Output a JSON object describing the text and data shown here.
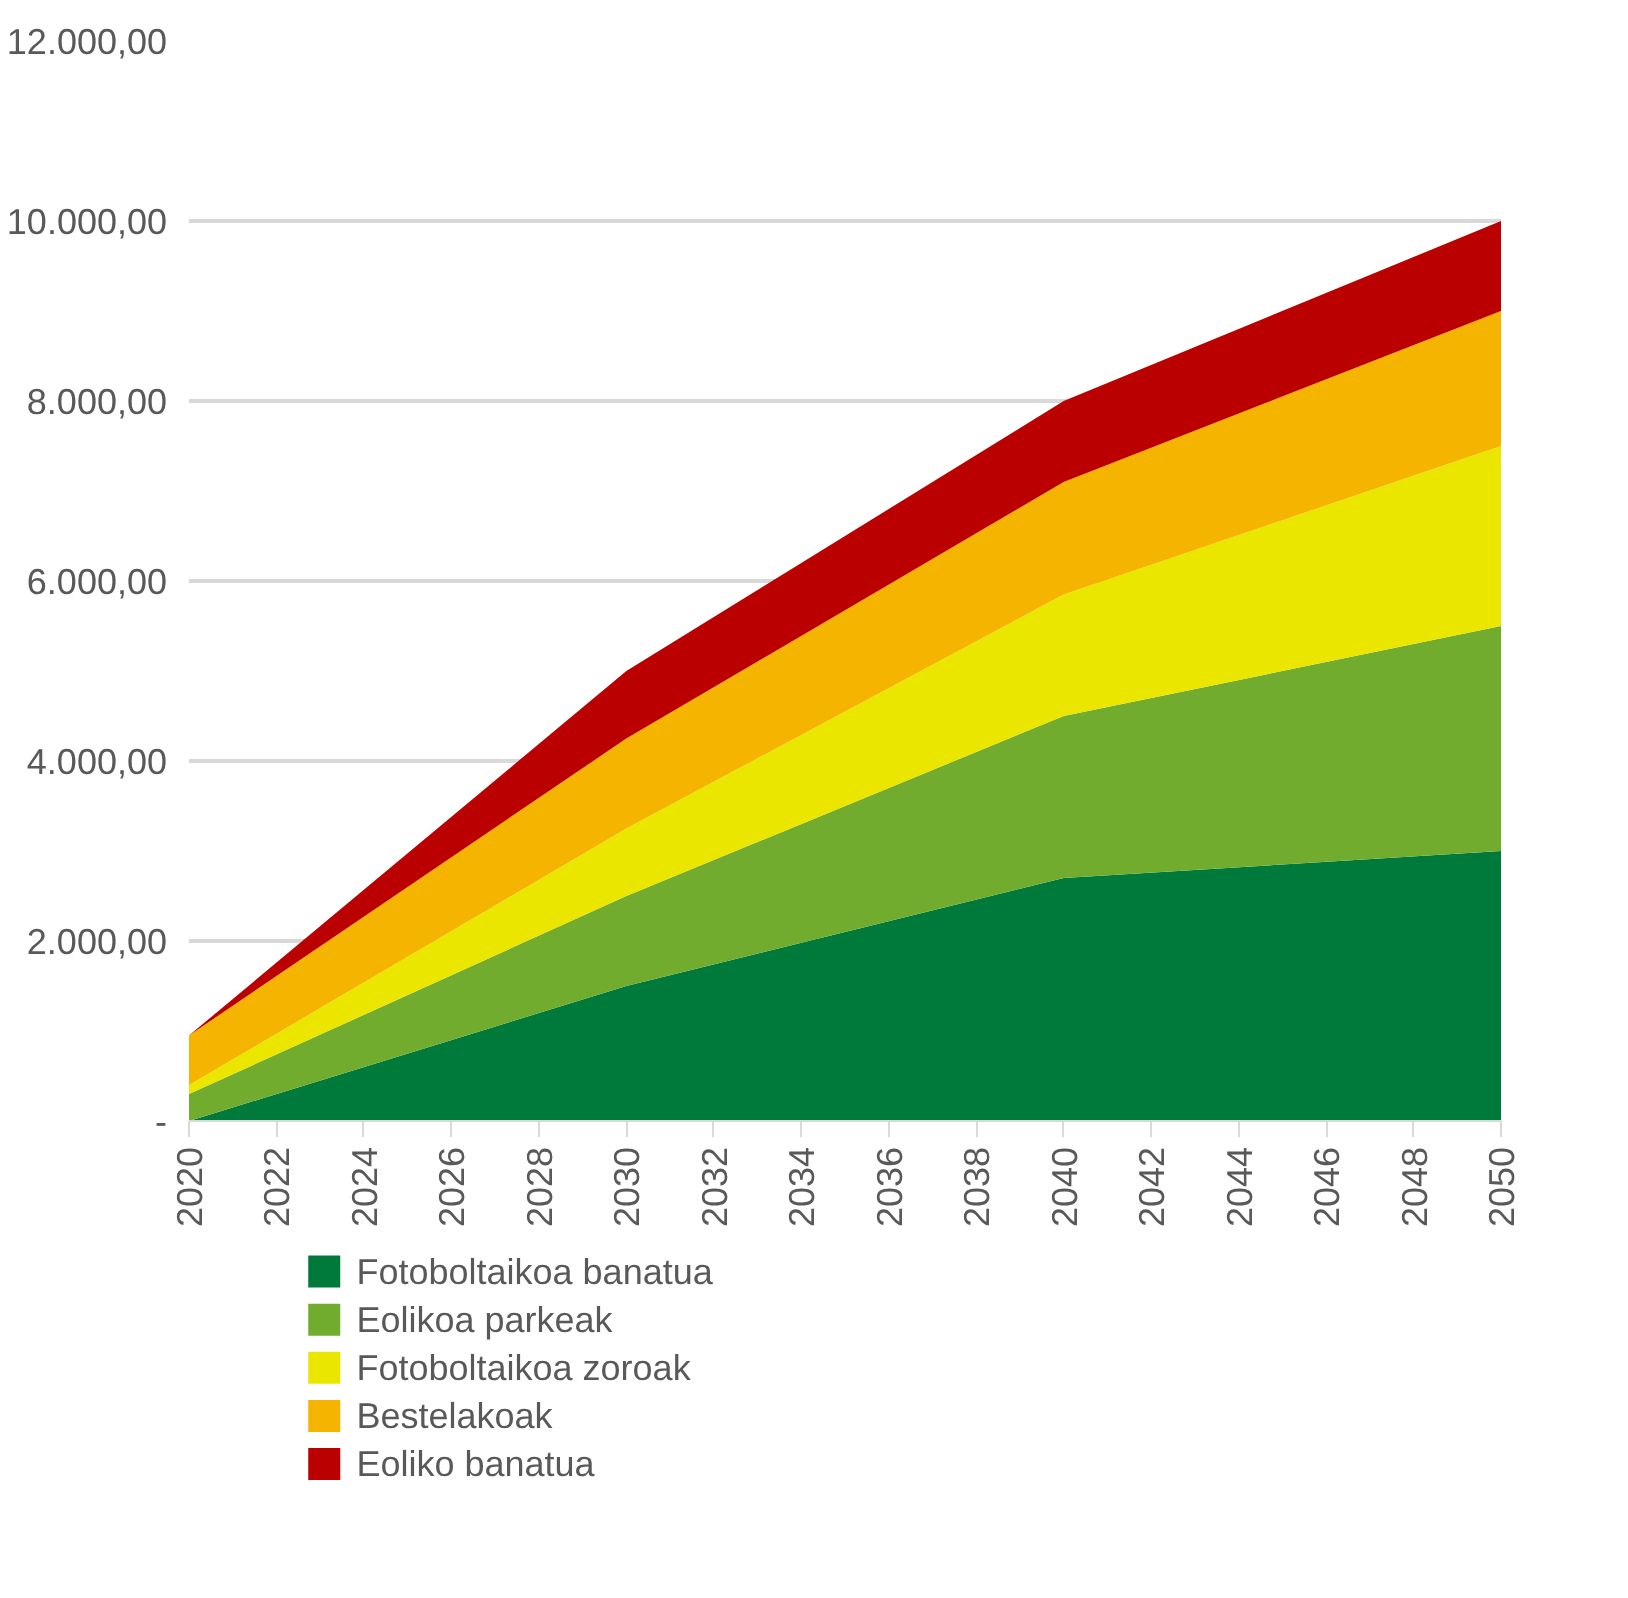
{
  "chart_data": {
    "type": "area",
    "stacked": true,
    "x": [
      2020,
      2030,
      2040,
      2050
    ],
    "xlim": [
      2020,
      2050
    ],
    "xticks": [
      2020,
      2022,
      2024,
      2026,
      2028,
      2030,
      2032,
      2034,
      2036,
      2038,
      2040,
      2042,
      2044,
      2046,
      2048,
      2050
    ],
    "ylim": [
      0,
      12000
    ],
    "yticks": [
      {
        "value": 0,
        "label": "-"
      },
      {
        "value": 2000,
        "label": "2.000,00"
      },
      {
        "value": 4000,
        "label": "4.000,00"
      },
      {
        "value": 6000,
        "label": "6.000,00"
      },
      {
        "value": 8000,
        "label": "8.000,00"
      },
      {
        "value": 10000,
        "label": "10.000,00"
      },
      {
        "value": 12000,
        "label": "12.000,00"
      }
    ],
    "grid": "y",
    "legend": "bottom",
    "series": [
      {
        "name": "Fotoboltaikoa banatua",
        "color": "#007a3a",
        "values": [
          0,
          1500,
          2700,
          3000
        ]
      },
      {
        "name": "Eolikoa parkeak",
        "color": "#72ac2f",
        "values": [
          300,
          1000,
          1800,
          2500
        ]
      },
      {
        "name": "Fotoboltaikoa zoroak",
        "color": "#ebe600",
        "values": [
          100,
          750,
          1350,
          2000
        ]
      },
      {
        "name": "Bestelakoak",
        "color": "#f5b400",
        "values": [
          550,
          1000,
          1250,
          1500
        ]
      },
      {
        "name": "Eoliko banatua",
        "color": "#bb0000",
        "values": [
          0,
          750,
          900,
          1000
        ]
      }
    ]
  }
}
